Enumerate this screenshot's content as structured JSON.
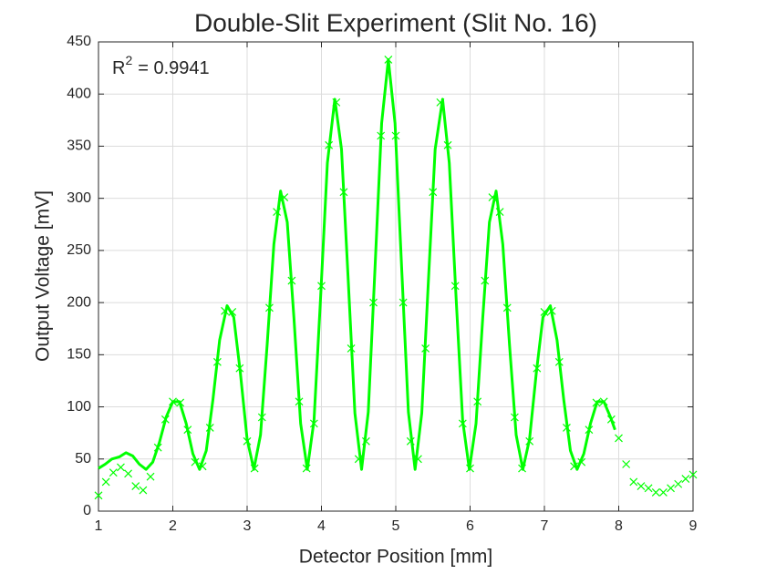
{
  "chart_data": {
    "type": "line",
    "title": "Double-Slit Experiment (Slit No. 16)",
    "xlabel": "Detector Position [mm]",
    "ylabel": "Output Voltage [mV]",
    "annotation": {
      "base": "R",
      "superscript": "2",
      "text": "= 0.9941"
    },
    "xlim": [
      1,
      9
    ],
    "xticks": [
      1,
      2,
      3,
      4,
      5,
      6,
      7,
      8,
      9
    ],
    "ylim": [
      0,
      450
    ],
    "yticks": [
      0,
      50,
      100,
      150,
      200,
      250,
      300,
      350,
      400,
      450
    ],
    "grid": true,
    "series": [
      {
        "kind": "line",
        "color": "#00ff00",
        "x": [
          1.0,
          1.09,
          1.18,
          1.28,
          1.37,
          1.46,
          1.55,
          1.64,
          1.73,
          1.82,
          1.91,
          2.0,
          2.09,
          2.18,
          2.27,
          2.36,
          2.45,
          2.54,
          2.63,
          2.73,
          2.82,
          2.91,
          3.0,
          3.09,
          3.18,
          3.27,
          3.36,
          3.45,
          3.54,
          3.63,
          3.72,
          3.81,
          3.9,
          3.99,
          4.08,
          4.18,
          4.27,
          4.36,
          4.45,
          4.54,
          4.63,
          4.72,
          4.81,
          4.9,
          4.99,
          5.08,
          5.17,
          5.26,
          5.35,
          5.44,
          5.53,
          5.63,
          5.72,
          5.81,
          5.9,
          5.99,
          6.08,
          6.17,
          6.26,
          6.35,
          6.44,
          6.53,
          6.62,
          6.71,
          6.8,
          6.89,
          6.98,
          7.08,
          7.17,
          7.26,
          7.35,
          7.44,
          7.53,
          7.62,
          7.71,
          7.8,
          7.89,
          7.95
        ],
        "values": [
          41,
          45,
          50,
          52,
          56,
          53,
          45,
          40,
          47,
          66,
          90,
          105,
          105,
          84,
          55,
          40,
          58,
          107,
          164,
          197,
          186,
          132,
          69,
          40,
          73,
          160,
          256,
          307,
          277,
          185,
          84,
          40,
          87,
          207,
          334,
          395,
          347,
          222,
          94,
          40,
          95,
          232,
          372,
          433,
          372,
          232,
          95,
          40,
          94,
          222,
          347,
          395,
          334,
          207,
          87,
          40,
          84,
          185,
          277,
          307,
          256,
          160,
          73,
          40,
          69,
          132,
          186,
          197,
          164,
          107,
          58,
          40,
          55,
          84,
          105,
          105,
          90,
          78
        ]
      },
      {
        "kind": "marker",
        "color": "#00ff00",
        "x": [
          1.0,
          1.1,
          1.2,
          1.3,
          1.4,
          1.5,
          1.6,
          1.7,
          1.8,
          1.9,
          2.0,
          2.1,
          2.2,
          2.3,
          2.4,
          2.5,
          2.6,
          2.7,
          2.8,
          2.9,
          3.0,
          3.1,
          3.2,
          3.3,
          3.4,
          3.5,
          3.6,
          3.7,
          3.8,
          3.9,
          4.0,
          4.1,
          4.2,
          4.3,
          4.4,
          4.5,
          4.6,
          4.7,
          4.8,
          4.9,
          5.0,
          5.1,
          5.2,
          5.3,
          5.4,
          5.5,
          5.6,
          5.7,
          5.8,
          5.9,
          6.0,
          6.1,
          6.2,
          6.3,
          6.4,
          6.5,
          6.6,
          6.7,
          6.8,
          6.9,
          7.0,
          7.1,
          7.2,
          7.3,
          7.4,
          7.5,
          7.6,
          7.7,
          7.8,
          7.9,
          8.0,
          8.1,
          8.2,
          8.3,
          8.4,
          8.5,
          8.6,
          8.7,
          8.8,
          8.9,
          9.0
        ],
        "values": [
          15,
          28,
          37,
          42,
          36,
          24,
          20,
          33,
          61,
          88,
          105,
          104,
          78,
          47,
          43,
          80,
          143,
          192,
          191,
          137,
          67,
          41,
          90,
          195,
          287,
          301,
          221,
          105,
          41,
          84,
          216,
          351,
          392,
          306,
          156,
          50,
          67,
          200,
          360,
          433,
          360,
          200,
          67,
          50,
          156,
          306,
          392,
          351,
          216,
          84,
          41,
          105,
          221,
          301,
          287,
          195,
          90,
          41,
          67,
          137,
          191,
          192,
          143,
          80,
          43,
          47,
          78,
          104,
          105,
          88,
          70,
          45,
          28,
          24,
          22,
          18,
          18,
          22,
          26,
          31,
          35
        ]
      }
    ]
  }
}
